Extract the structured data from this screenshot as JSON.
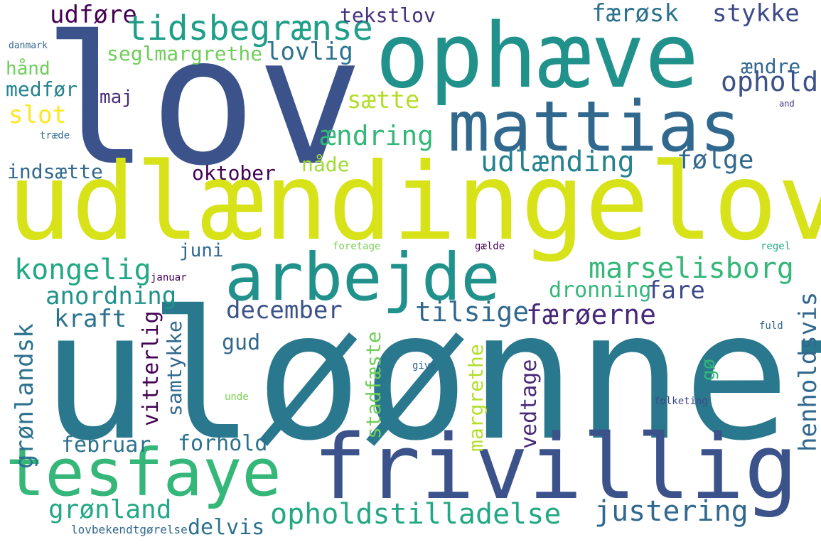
{
  "words": [
    {
      "text": "lov",
      "color": "#3b528b",
      "vertical": false
    },
    {
      "text": "ophæve",
      "color": "#21918c",
      "vertical": false
    },
    {
      "text": "mattias",
      "color": "#31688e",
      "vertical": false
    },
    {
      "text": "udlændingelov",
      "color": "#d8e219",
      "vertical": false
    },
    {
      "text": "arbejde",
      "color": "#21918c",
      "vertical": false
    },
    {
      "text": "uløønnet",
      "color": "#2a788e",
      "vertical": false
    },
    {
      "text": "tesfaye",
      "color": "#35b779",
      "vertical": false
    },
    {
      "text": "frivillig",
      "color": "#3b528b",
      "vertical": false
    },
    {
      "text": "udføre",
      "color": "#440154",
      "vertical": false
    },
    {
      "text": "tidsbegrænse",
      "color": "#1f9e89",
      "vertical": false
    },
    {
      "text": "tekstlov",
      "color": "#46337e",
      "vertical": false
    },
    {
      "text": "færøsk",
      "color": "#2c728e",
      "vertical": false
    },
    {
      "text": "stykke",
      "color": "#3e4989",
      "vertical": false
    },
    {
      "text": "lovlig",
      "color": "#2c728e",
      "vertical": false
    },
    {
      "text": "seglmargrethe",
      "color": "#6ece58",
      "vertical": false
    },
    {
      "text": "danmark",
      "color": "#31688e",
      "vertical": false
    },
    {
      "text": "hånd",
      "color": "#6ece58",
      "vertical": false
    },
    {
      "text": "medfør",
      "color": "#26828e",
      "vertical": false
    },
    {
      "text": "maj",
      "color": "#472d7b",
      "vertical": false
    },
    {
      "text": "sætte",
      "color": "#b5de2b",
      "vertical": false
    },
    {
      "text": "ændre",
      "color": "#31688e",
      "vertical": false
    },
    {
      "text": "ophold",
      "color": "#3b528b",
      "vertical": false
    },
    {
      "text": "slot",
      "color": "#fde725",
      "vertical": false
    },
    {
      "text": "and",
      "color": "#46337e",
      "vertical": false
    },
    {
      "text": "træde",
      "color": "#31688e",
      "vertical": false
    },
    {
      "text": "ændring",
      "color": "#35b779",
      "vertical": false
    },
    {
      "text": "udlænding",
      "color": "#26828e",
      "vertical": false
    },
    {
      "text": "følge",
      "color": "#31688e",
      "vertical": false
    },
    {
      "text": "indsætte",
      "color": "#31688e",
      "vertical": false
    },
    {
      "text": "oktober",
      "color": "#440154",
      "vertical": false
    },
    {
      "text": "nåde",
      "color": "#a0da39",
      "vertical": false
    },
    {
      "text": "kongelig",
      "color": "#22a884",
      "vertical": false
    },
    {
      "text": "marselisborg",
      "color": "#35b779",
      "vertical": false
    },
    {
      "text": "juni",
      "color": "#31688e",
      "vertical": false
    },
    {
      "text": "foretage",
      "color": "#7ad151",
      "vertical": false
    },
    {
      "text": "gælde",
      "color": "#440154",
      "vertical": false
    },
    {
      "text": "regel",
      "color": "#22a884",
      "vertical": false
    },
    {
      "text": "januar",
      "color": "#440154",
      "vertical": false
    },
    {
      "text": "anordning",
      "color": "#21918c",
      "vertical": false
    },
    {
      "text": "fare",
      "color": "#3e4989",
      "vertical": false
    },
    {
      "text": "dronning",
      "color": "#35b779",
      "vertical": false
    },
    {
      "text": "december",
      "color": "#3b528b",
      "vertical": false
    },
    {
      "text": "kraft",
      "color": "#2c728e",
      "vertical": false
    },
    {
      "text": "tilsige",
      "color": "#31688e",
      "vertical": false
    },
    {
      "text": "færøerne",
      "color": "#482878",
      "vertical": false
    },
    {
      "text": "henholdsvis",
      "color": "#31688e",
      "vertical": true
    },
    {
      "text": "grønlandsk",
      "color": "#2c728e",
      "vertical": true
    },
    {
      "text": "vitterlig",
      "color": "#440154",
      "vertical": true
    },
    {
      "text": "samtykke",
      "color": "#31688e",
      "vertical": true
    },
    {
      "text": "gud",
      "color": "#31688e",
      "vertical": false
    },
    {
      "text": "stadfæste",
      "color": "#6ece58",
      "vertical": true
    },
    {
      "text": "margrethe",
      "color": "#b5de2b",
      "vertical": true
    },
    {
      "text": "vedtage",
      "color": "#482878",
      "vertical": true
    },
    {
      "text": "gø",
      "color": "#35b779",
      "vertical": true
    },
    {
      "text": "fuld",
      "color": "#31688e",
      "vertical": false
    },
    {
      "text": "give",
      "color": "#31688e",
      "vertical": false
    },
    {
      "text": "unde",
      "color": "#7ad151",
      "vertical": false
    },
    {
      "text": "folketing",
      "color": "#3e4989",
      "vertical": false
    },
    {
      "text": "februar",
      "color": "#2c728e",
      "vertical": false
    },
    {
      "text": "forhold",
      "color": "#2c728e",
      "vertical": false
    },
    {
      "text": "grønland",
      "color": "#22a884",
      "vertical": false
    },
    {
      "text": "opholdstilladelse",
      "color": "#22a884",
      "vertical": false
    },
    {
      "text": "justering",
      "color": "#31688e",
      "vertical": false
    },
    {
      "text": "lovbekendtgørelse",
      "color": "#31688e",
      "vertical": false
    },
    {
      "text": "delvis",
      "color": "#2c728e",
      "vertical": false
    }
  ]
}
